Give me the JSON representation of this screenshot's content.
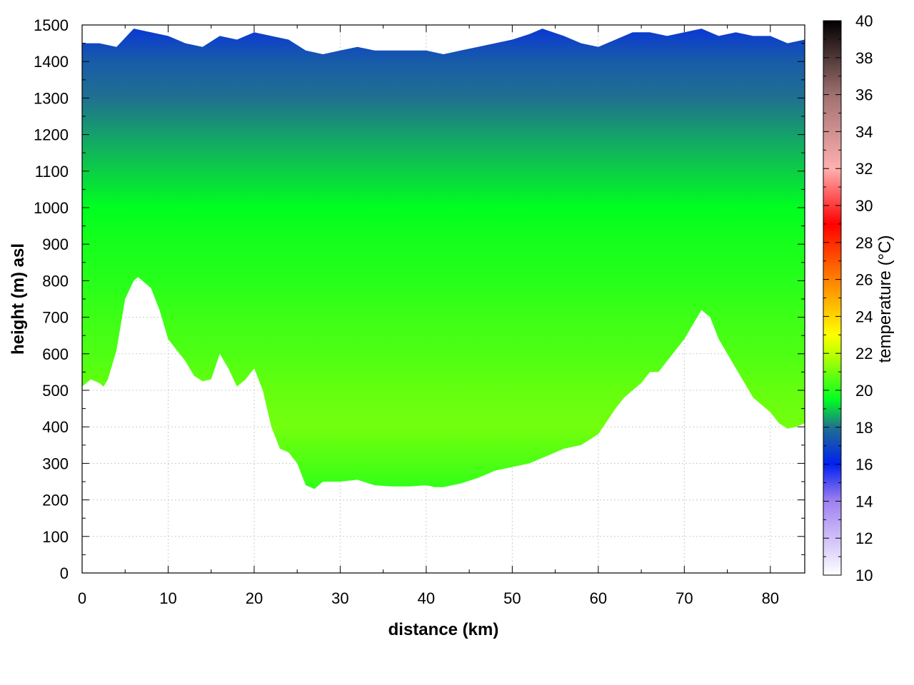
{
  "chart_data": {
    "type": "heatmap",
    "xlabel": "distance (km)",
    "ylabel": "height (m) asl",
    "colorbar_label": "temperature (°C)",
    "xlim": [
      0,
      84
    ],
    "ylim": [
      0,
      1500
    ],
    "x_ticks": [
      0,
      10,
      20,
      30,
      40,
      50,
      60,
      70,
      80
    ],
    "y_ticks": [
      0,
      100,
      200,
      300,
      400,
      500,
      600,
      700,
      800,
      900,
      1000,
      1100,
      1200,
      1300,
      1400,
      1500
    ],
    "x_tick_labels": [
      "0",
      "10",
      "20",
      "30",
      "40",
      "50",
      "60",
      "70",
      "80"
    ],
    "y_tick_labels": [
      "0",
      "100",
      "200",
      "300",
      "400",
      "500",
      "600",
      "700",
      "800",
      "900",
      "1000",
      "1100",
      "1200",
      "1300",
      "1400",
      "1500"
    ],
    "colorbar_range": [
      10,
      40
    ],
    "colorbar_ticks": [
      10,
      12,
      14,
      16,
      18,
      20,
      22,
      24,
      26,
      28,
      30,
      32,
      34,
      36,
      38,
      40
    ],
    "colorbar_tick_labels": [
      "10",
      "12",
      "14",
      "16",
      "18",
      "20",
      "22",
      "24",
      "26",
      "28",
      "30",
      "32",
      "34",
      "36",
      "38",
      "40"
    ],
    "colormap": [
      {
        "value": 10,
        "color": "#ffffff"
      },
      {
        "value": 14,
        "color": "#a080f0"
      },
      {
        "value": 16,
        "color": "#0020f0"
      },
      {
        "value": 18,
        "color": "#207090"
      },
      {
        "value": 19.5,
        "color": "#00ff20"
      },
      {
        "value": 22,
        "color": "#c0ff00"
      },
      {
        "value": 23,
        "color": "#ffff00"
      },
      {
        "value": 26,
        "color": "#ff8000"
      },
      {
        "value": 29,
        "color": "#ff0000"
      },
      {
        "value": 32,
        "color": "#ffb0b0"
      },
      {
        "value": 36,
        "color": "#a07070"
      },
      {
        "value": 40,
        "color": "#000000"
      }
    ],
    "grid": true,
    "terrain_profile": {
      "distance_km": [
        0,
        1,
        2,
        2.5,
        3,
        4,
        5,
        6,
        6.5,
        7,
        8,
        9,
        10,
        11,
        12,
        13,
        14,
        15,
        16,
        17,
        18,
        19,
        20,
        21,
        22,
        23,
        24,
        25,
        26,
        27,
        28,
        29,
        30,
        32,
        34,
        36,
        38,
        40,
        41,
        42,
        44,
        46,
        48,
        50,
        52,
        54,
        56,
        58,
        60,
        62,
        63,
        64,
        65,
        66,
        67,
        68,
        70,
        71,
        72,
        73,
        74,
        76,
        77,
        78,
        79,
        80,
        81,
        82,
        83,
        84
      ],
      "height_m": [
        510,
        530,
        520,
        510,
        530,
        610,
        750,
        800,
        810,
        800,
        780,
        720,
        640,
        610,
        580,
        540,
        525,
        530,
        600,
        560,
        510,
        530,
        560,
        500,
        400,
        340,
        330,
        300,
        240,
        230,
        250,
        250,
        250,
        255,
        240,
        237,
        237,
        240,
        235,
        235,
        245,
        260,
        280,
        290,
        300,
        320,
        340,
        350,
        380,
        450,
        480,
        500,
        520,
        550,
        550,
        580,
        640,
        680,
        720,
        700,
        640,
        560,
        520,
        480,
        460,
        440,
        410,
        395,
        400,
        410
      ]
    },
    "top_boundary": {
      "distance_km": [
        0,
        2,
        4,
        6,
        8,
        10,
        12,
        14,
        16,
        18,
        20,
        22,
        24,
        26,
        28,
        30,
        32,
        34,
        36,
        38,
        40,
        42,
        44,
        46,
        48,
        50,
        52,
        53.5,
        56,
        58,
        60,
        62,
        64,
        66,
        68,
        70,
        72,
        74,
        76,
        78,
        80,
        82,
        84
      ],
      "height_m": [
        1450,
        1450,
        1440,
        1490,
        1480,
        1470,
        1450,
        1440,
        1470,
        1460,
        1480,
        1470,
        1460,
        1430,
        1420,
        1430,
        1440,
        1430,
        1430,
        1430,
        1430,
        1420,
        1430,
        1440,
        1450,
        1460,
        1475,
        1490,
        1470,
        1450,
        1440,
        1460,
        1480,
        1480,
        1470,
        1480,
        1490,
        1470,
        1480,
        1470,
        1470,
        1450,
        1460
      ]
    },
    "temperature_profile": {
      "height_m": [
        200,
        300,
        400,
        500,
        600,
        700,
        800,
        900,
        1000,
        1100,
        1200,
        1300,
        1400,
        1500
      ],
      "temperature_c": [
        20.0,
        20.5,
        21.0,
        20.8,
        20.5,
        20.3,
        20.0,
        19.8,
        19.5,
        19.0,
        18.5,
        18.0,
        17.5,
        16.5
      ]
    }
  }
}
